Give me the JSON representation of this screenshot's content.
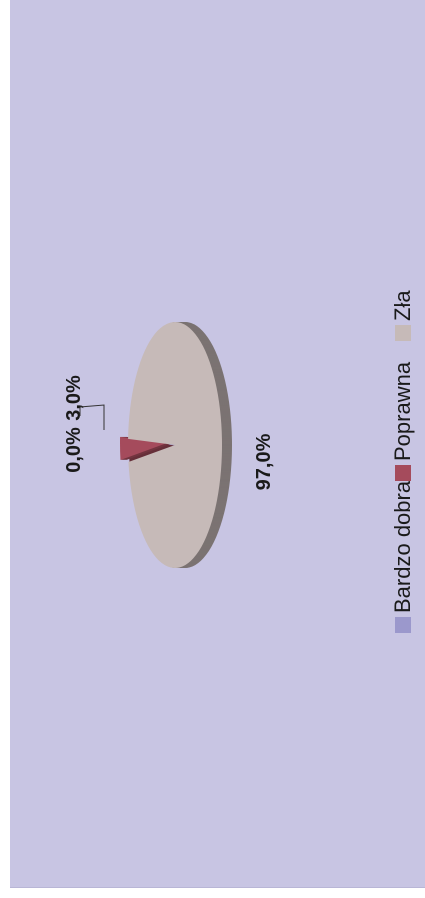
{
  "chart_data": {
    "type": "pie",
    "style": "3d",
    "categories": [
      "Bardzo dobra",
      "Poprawna",
      "Zła"
    ],
    "values": [
      0.0,
      3.0,
      97.0
    ],
    "labels": [
      "0,0%",
      "3,0%",
      "97,0%"
    ],
    "colors": [
      "#9b98cc",
      "#a54b5c",
      "#c6bab8"
    ],
    "legend": {
      "position": "right",
      "items": [
        "Bardzo dobra",
        "Poprawna",
        "Zła"
      ]
    },
    "background": "#c8c5e3",
    "title": ""
  }
}
